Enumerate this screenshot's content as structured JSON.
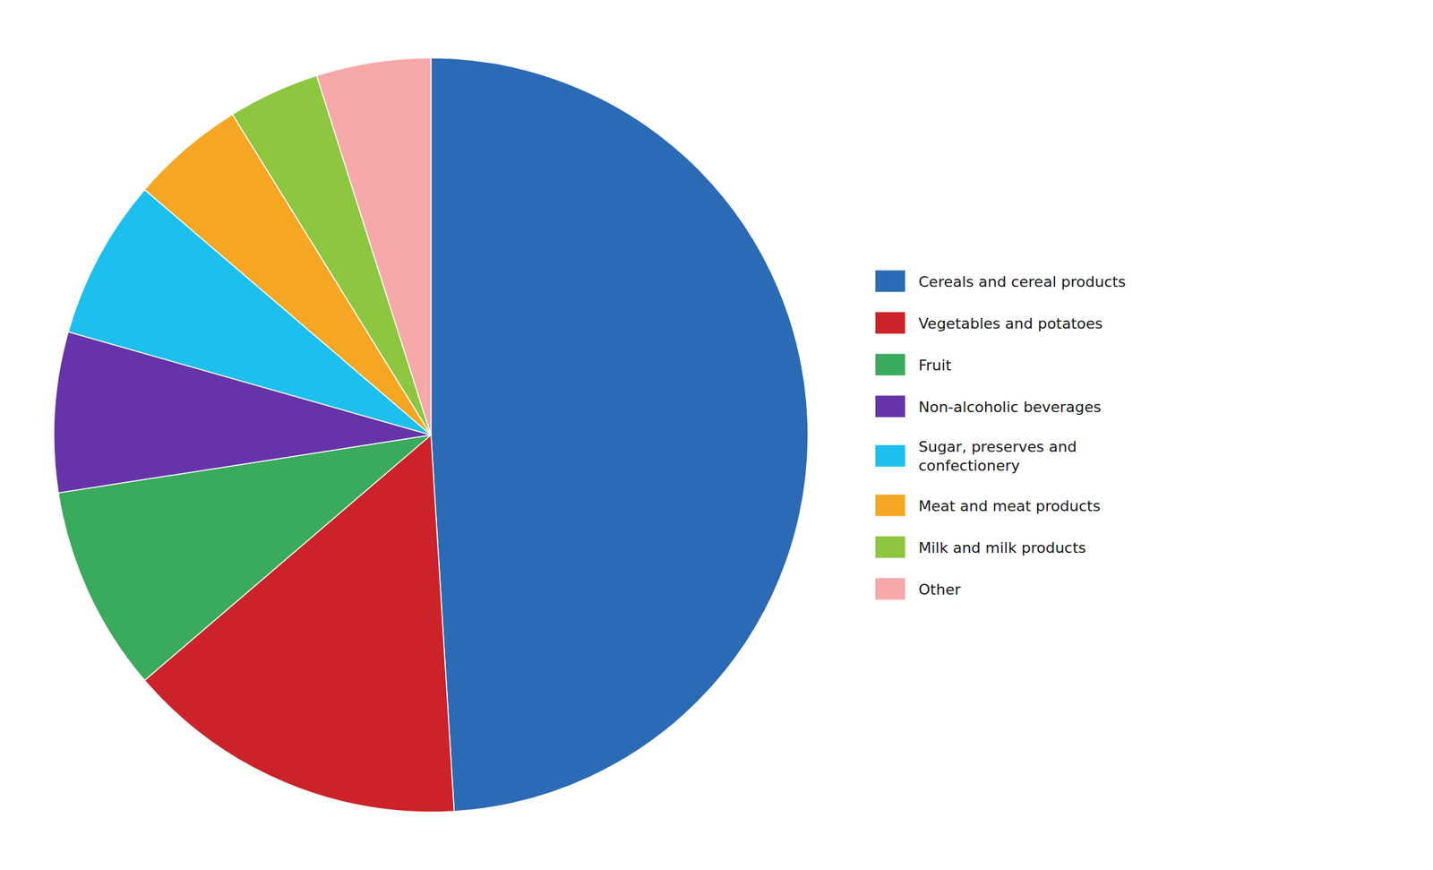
{
  "chart_data": {
    "type": "pie",
    "categories": [
      "Cereals and cereal products",
      "Vegetables and potatoes",
      "Fruit",
      "Non-alcoholic beverages",
      "Sugar, preserves and\nconfectionery",
      "Meat and meat products",
      "Milk and milk products",
      "Other"
    ],
    "values": [
      50,
      15,
      9,
      7,
      7,
      5,
      4,
      5
    ],
    "colors": [
      "#2b6ab5",
      "#cc2229",
      "#3aaa5c",
      "#6633aa",
      "#1dbfef",
      "#f5a623",
      "#8dc63f",
      "#f7a8a8"
    ],
    "legend": "right"
  }
}
